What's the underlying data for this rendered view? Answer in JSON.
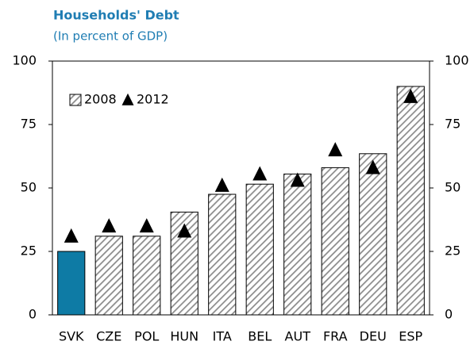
{
  "chart_data": {
    "type": "bar",
    "title": "Households' Debt",
    "subtitle": "(In percent of GDP)",
    "categories": [
      "SVK",
      "CZE",
      "POL",
      "HUN",
      "ITA",
      "BEL",
      "AUT",
      "FRA",
      "DEU",
      "ESP"
    ],
    "series": [
      {
        "name": "2008",
        "type": "bar",
        "color": "#8c8c8c",
        "highlight": "SVK",
        "highlight_color": "#0e7ba5",
        "values": [
          25,
          31,
          31,
          40.5,
          47.5,
          51.5,
          55.5,
          58,
          63.5,
          90
        ]
      },
      {
        "name": "2012",
        "type": "marker",
        "color": "#000000",
        "values": [
          31,
          35,
          35,
          33,
          51,
          55.5,
          53,
          65,
          58,
          86
        ]
      }
    ],
    "ylim": [
      0,
      100
    ],
    "yticks": [
      0,
      25,
      50,
      75,
      100
    ],
    "y2lim": [
      0,
      100
    ],
    "y2ticks": [
      0,
      25,
      50,
      75,
      100
    ],
    "legend": "upper left",
    "grid": false
  }
}
